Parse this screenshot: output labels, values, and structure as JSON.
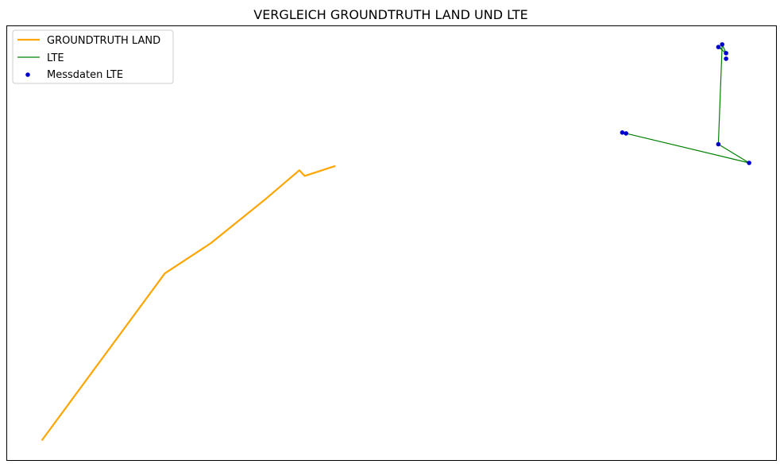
{
  "chart_data": {
    "type": "line",
    "title": "VERGLEICH GROUNDTRUTH LAND UND LTE",
    "xlabel": "",
    "ylabel": "",
    "axes_ticks_visible": false,
    "grid": false,
    "legend_position": "top-left",
    "xlim": [
      0,
      100
    ],
    "ylim": [
      0,
      100
    ],
    "series": [
      {
        "name": "GROUNDTRUTH LAND",
        "kind": "line",
        "color": "#ffa500",
        "points": [
          [
            4.5,
            4.5
          ],
          [
            20.5,
            43.0
          ],
          [
            23.5,
            46.5
          ],
          [
            26.5,
            50.0
          ],
          [
            33.5,
            60.0
          ],
          [
            38.0,
            66.8
          ],
          [
            38.7,
            65.5
          ],
          [
            42.7,
            67.8
          ]
        ]
      },
      {
        "name": "LTE",
        "kind": "line",
        "color": "#008000",
        "points": [
          [
            80.0,
            75.5
          ],
          [
            80.5,
            75.3
          ],
          [
            96.5,
            68.5
          ],
          [
            92.5,
            72.8
          ],
          [
            93.0,
            95.8
          ],
          [
            93.5,
            93.8
          ],
          [
            92.5,
            95.2
          ],
          [
            93.0,
            94.8
          ]
        ]
      },
      {
        "name": "Messdaten LTE",
        "kind": "scatter",
        "color": "#0000cd",
        "points": [
          [
            80.0,
            75.5
          ],
          [
            80.5,
            75.3
          ],
          [
            96.5,
            68.5
          ],
          [
            92.5,
            72.8
          ],
          [
            93.0,
            95.8
          ],
          [
            93.5,
            93.8
          ],
          [
            92.5,
            95.2
          ],
          [
            93.5,
            92.5
          ]
        ]
      }
    ]
  }
}
